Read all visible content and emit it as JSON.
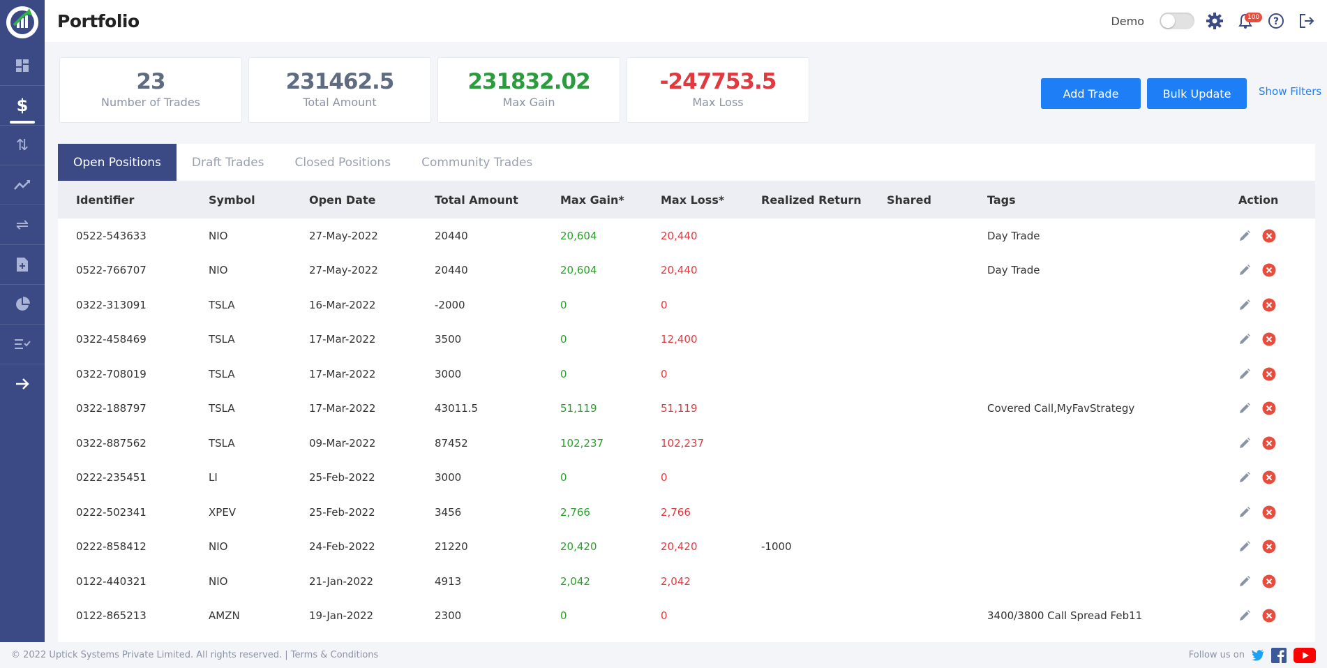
{
  "app": {
    "title": "Portfolio"
  },
  "colors": {
    "sidebar": "#3b4a85",
    "accent": "#1e7ef5",
    "gain": "#2aa12a",
    "loss": "#e0393e",
    "stat_neutral": "#5f6b80",
    "stat_gain": "#2a9c3c",
    "stat_loss": "#e0393e"
  },
  "nav": [
    {
      "icon": "dashboard-icon"
    },
    {
      "icon": "dollar-icon",
      "active": true
    },
    {
      "icon": "trades-icon"
    },
    {
      "icon": "trend-icon"
    },
    {
      "icon": "exchange-icon"
    },
    {
      "icon": "add-file-icon"
    },
    {
      "icon": "pie-chart-icon"
    },
    {
      "icon": "checklist-icon"
    }
  ],
  "header": {
    "demo_label": "Demo",
    "notification_count": "100"
  },
  "stats": [
    {
      "value": "23",
      "label": "Number of Trades"
    },
    {
      "value": "231462.5",
      "label": "Total Amount"
    },
    {
      "value": "231832.02",
      "label": "Max Gain"
    },
    {
      "value": "-247753.5",
      "label": "Max Loss"
    }
  ],
  "actions": {
    "add_trade": "Add Trade",
    "bulk_update": "Bulk Update",
    "show_filters": "Show Filters"
  },
  "tabs": [
    "Open Positions",
    "Draft Trades",
    "Closed Positions",
    "Community Trades"
  ],
  "table": {
    "columns": [
      "Identifier",
      "Symbol",
      "Open Date",
      "Total Amount",
      "Max Gain*",
      "Max Loss*",
      "Realized Return",
      "Shared",
      "Tags",
      "Action"
    ],
    "rows": [
      [
        "0522-543633",
        "NIO",
        "27-May-2022",
        "20440",
        "20,604",
        "20,440",
        "",
        "",
        "Day Trade"
      ],
      [
        "0522-766707",
        "NIO",
        "27-May-2022",
        "20440",
        "20,604",
        "20,440",
        "",
        "",
        "Day Trade"
      ],
      [
        "0322-313091",
        "TSLA",
        "16-Mar-2022",
        "-2000",
        "0",
        "0",
        "",
        "",
        ""
      ],
      [
        "0322-458469",
        "TSLA",
        "17-Mar-2022",
        "3500",
        "0",
        "12,400",
        "",
        "",
        ""
      ],
      [
        "0322-708019",
        "TSLA",
        "17-Mar-2022",
        "3000",
        "0",
        "0",
        "",
        "",
        ""
      ],
      [
        "0322-188797",
        "TSLA",
        "17-Mar-2022",
        "43011.5",
        "51,119",
        "51,119",
        "",
        "",
        "Covered Call,MyFavStrategy"
      ],
      [
        "0322-887562",
        "TSLA",
        "09-Mar-2022",
        "87452",
        "102,237",
        "102,237",
        "",
        "",
        ""
      ],
      [
        "0222-235451",
        "LI",
        "25-Feb-2022",
        "3000",
        "0",
        "0",
        "",
        "",
        ""
      ],
      [
        "0222-502341",
        "XPEV",
        "25-Feb-2022",
        "3456",
        "2,766",
        "2,766",
        "",
        "",
        ""
      ],
      [
        "0222-858412",
        "NIO",
        "24-Feb-2022",
        "21220",
        "20,420",
        "20,420",
        "-1000",
        "",
        ""
      ],
      [
        "0122-440321",
        "NIO",
        "21-Jan-2022",
        "4913",
        "2,042",
        "2,042",
        "",
        "",
        ""
      ],
      [
        "0122-865213",
        "AMZN",
        "19-Jan-2022",
        "2300",
        "0",
        "0",
        "",
        "",
        "3400/3800 Call Spread Feb11"
      ]
    ]
  },
  "footer": {
    "copyright": "© 2022 Uptick Systems Private Limited. All rights reserved. | Terms & Conditions",
    "follow": "Follow us on"
  }
}
